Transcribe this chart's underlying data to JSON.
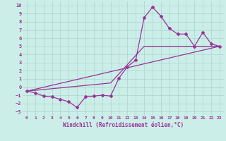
{
  "background_color": "#cceee8",
  "grid_color": "#aad4ce",
  "line_color": "#993399",
  "marker": "D",
  "markersize": 2,
  "linewidth": 0.9,
  "xlabel": "Windchill (Refroidissement éolien,°C)",
  "xlabel_fontsize": 5.5,
  "xlim": [
    -0.5,
    23.5
  ],
  "ylim": [
    -3.5,
    10.5
  ],
  "xticks": [
    0,
    1,
    2,
    3,
    4,
    5,
    6,
    7,
    8,
    9,
    10,
    11,
    12,
    13,
    14,
    15,
    16,
    17,
    18,
    19,
    20,
    21,
    22,
    23
  ],
  "yticks": [
    -3,
    -2,
    -1,
    0,
    1,
    2,
    3,
    4,
    5,
    6,
    7,
    8,
    9,
    10
  ],
  "series1_x": [
    0,
    1,
    2,
    3,
    4,
    5,
    6,
    7,
    8,
    9,
    10,
    11,
    12,
    13,
    14,
    15,
    16,
    17,
    18,
    19,
    20,
    21,
    22,
    23
  ],
  "series1_y": [
    -0.5,
    -0.7,
    -1.1,
    -1.2,
    -1.5,
    -1.8,
    -2.5,
    -1.2,
    -1.1,
    -1.0,
    -1.1,
    1.1,
    2.5,
    3.3,
    8.5,
    9.8,
    8.7,
    7.2,
    6.5,
    6.5,
    5.0,
    6.7,
    5.3,
    5.0
  ],
  "series2_x": [
    0,
    23
  ],
  "series2_y": [
    -0.5,
    5.0
  ],
  "series3_x": [
    0,
    10,
    14,
    23
  ],
  "series3_y": [
    -0.5,
    0.5,
    5.0,
    5.0
  ]
}
